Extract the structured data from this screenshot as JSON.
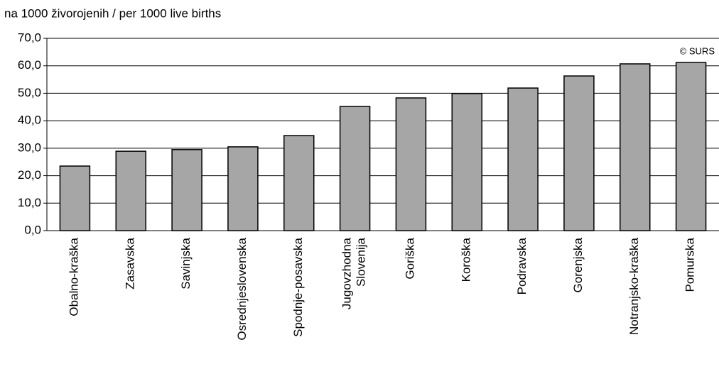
{
  "chart_data": {
    "type": "bar",
    "y_label": "na 1000 živorojenih / per 1000 live births",
    "annotation": "© SURS",
    "categories": [
      "Obalno-kraška",
      "Zasavska",
      "Savinjska",
      "Osrednjeslovenska",
      "Spodnje-posavska",
      "Jugovzhodna\nSlovenija",
      "Goriška",
      "Koroška",
      "Podravska",
      "Gorenjska",
      "Notranjsko-kraška",
      "Pomurska"
    ],
    "values": [
      23.5,
      28.9,
      29.5,
      30.5,
      34.6,
      45.2,
      48.3,
      49.9,
      51.9,
      56.3,
      60.7,
      61.2
    ],
    "color": "#a6a6a6",
    "ylim": [
      0,
      70
    ],
    "yticks": [
      {
        "value": 0,
        "label": "0,0"
      },
      {
        "value": 10,
        "label": "10,0"
      },
      {
        "value": 20,
        "label": "20,0"
      },
      {
        "value": 30,
        "label": "30,0"
      },
      {
        "value": 40,
        "label": "40,0"
      },
      {
        "value": 50,
        "label": "50,0"
      },
      {
        "value": 60,
        "label": "60,0"
      },
      {
        "value": 70,
        "label": "70,0"
      }
    ],
    "grid": true
  }
}
